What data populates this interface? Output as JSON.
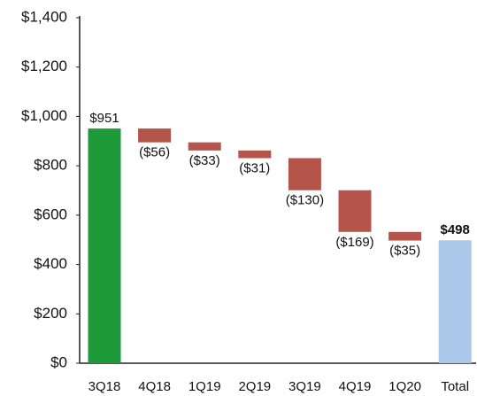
{
  "chart_data": {
    "type": "waterfall",
    "categories": [
      "3Q18",
      "4Q18",
      "1Q19",
      "2Q19",
      "3Q19",
      "4Q19",
      "1Q20",
      "Total"
    ],
    "values": [
      951,
      -56,
      -33,
      -31,
      -130,
      -169,
      -35,
      498
    ],
    "value_labels": [
      "$951",
      "($56)",
      "($33)",
      "($31)",
      "($130)",
      "($169)",
      "($35)",
      "$498"
    ],
    "measure": [
      "absolute",
      "relative",
      "relative",
      "relative",
      "relative",
      "relative",
      "relative",
      "total"
    ],
    "colors": [
      "#1f9a3a",
      "#b4544b",
      "#b4544b",
      "#b4544b",
      "#b4544b",
      "#b4544b",
      "#b4544b",
      "#a9c7e8"
    ],
    "ylim": [
      0,
      1400
    ],
    "yticks": [
      {
        "value": 0,
        "label": "$0"
      },
      {
        "value": 200,
        "label": "$200"
      },
      {
        "value": 400,
        "label": "$400"
      },
      {
        "value": 600,
        "label": "$600"
      },
      {
        "value": 800,
        "label": "$800"
      },
      {
        "value": 1000,
        "label": "$1,000"
      },
      {
        "value": 1200,
        "label": "$1,200"
      },
      {
        "value": 1400,
        "label": "$1,400"
      }
    ],
    "grid": false
  }
}
